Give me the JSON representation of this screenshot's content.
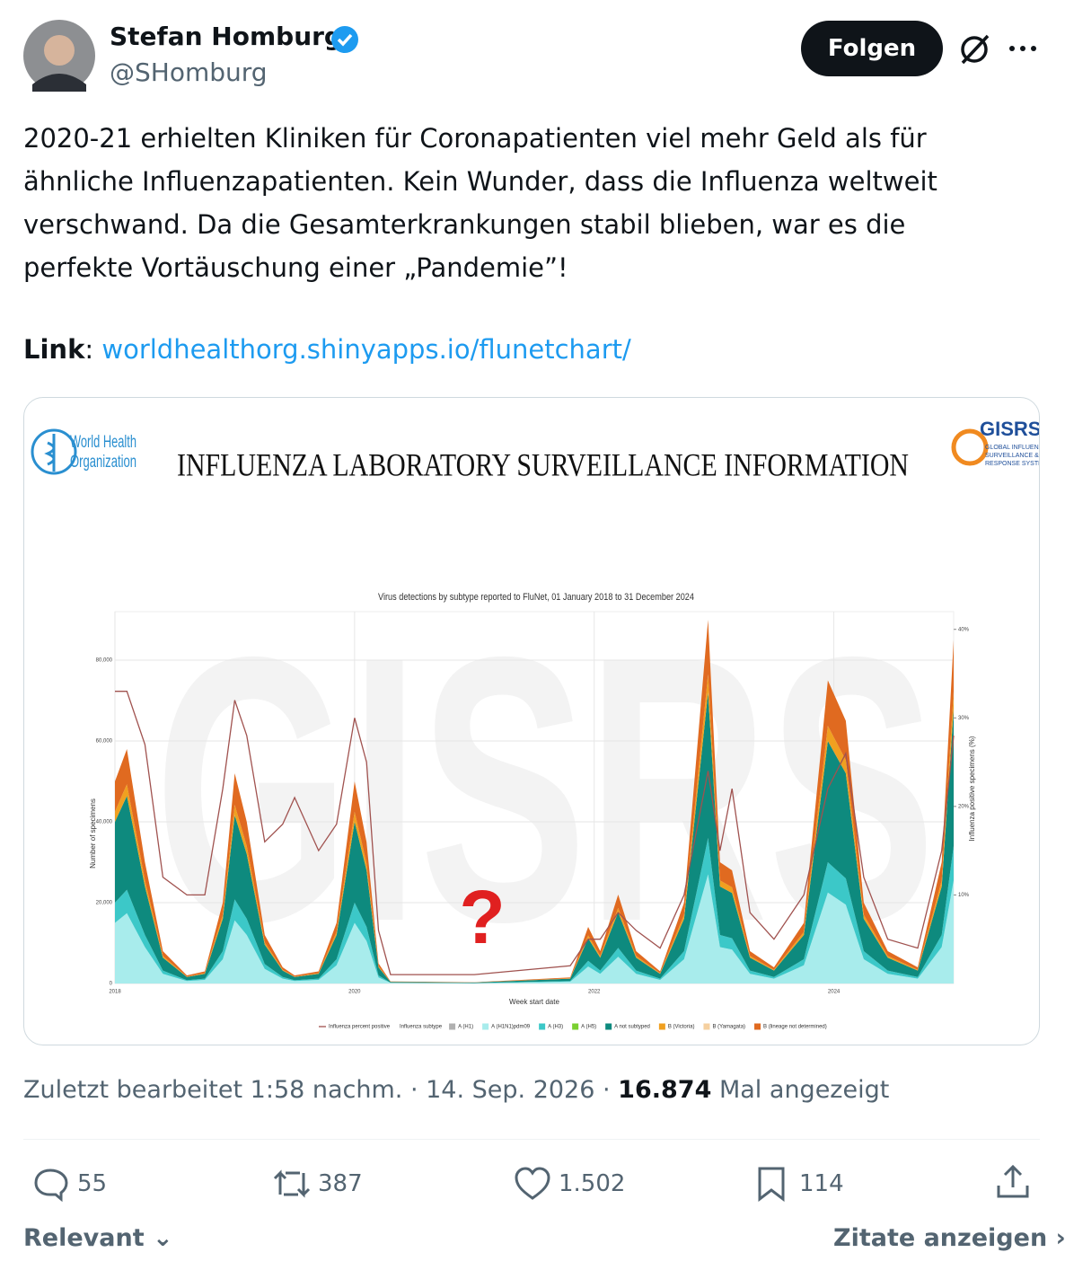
{
  "author": {
    "name": "Stefan Homburg",
    "handle": "@SHomburg"
  },
  "follow_button": "Folgen",
  "text_lines": [
    "2020-21 erhielten Kliniken für Coronapatienten viel mehr Geld als für",
    "ähnliche Influenzapatienten. Kein Wunder, dass die Influenza weltweit",
    "verschwand. Da die Gesamterkrankungen stabil blieben, war es die",
    "perfekte Vortäuschung einer „Pandemie”!"
  ],
  "link": {
    "label": "Link",
    "url": "worldhealthorg.shinyapps.io/flunetchart/"
  },
  "meta": {
    "edited": "Zuletzt bearbeitet 1:58 nachm. · 14. Sep. 2026 ·",
    "views": "16.874",
    "views_label": "Mal angezeigt"
  },
  "actions": {
    "replies": "55",
    "reposts": "387",
    "likes": "1.502",
    "bookmarks": "114"
  },
  "footer": {
    "sort": "Relevant",
    "quotes": "Zitate anzeigen"
  },
  "chart_data": {
    "type": "stacked_area",
    "banner": "INFLUENZA LABORATORY SURVEILLANCE INFORMATION",
    "who_logo": [
      "World Health",
      "Organization"
    ],
    "gisrs_logo": "GISRS",
    "gisrs_sub": [
      "GLOBAL INFLUENZA",
      "SURVEILLANCE &",
      "RESPONSE SYSTEM"
    ],
    "watermark": "GISRS",
    "title": "Virus detections by subtype reported to FluNet, 01 January 2018 to 31 December 2024",
    "xlabel": "Week start date",
    "ylabel": "Number of specimens",
    "y2label": "Influenza positive specimens (%)",
    "annotation": "?",
    "legend_title": "Influenza subtype",
    "xlim": [
      2018,
      2025
    ],
    "xticks": [
      2018,
      2020,
      2022,
      2024
    ],
    "ylim": [
      0,
      92000
    ],
    "yticks": [
      0,
      {
        "value": 20000,
        "label": "20,000"
      },
      {
        "value": 40000,
        "label": "40,000"
      },
      {
        "value": 60000,
        "label": "60,000"
      },
      {
        "value": 80000,
        "label": "80,000"
      }
    ],
    "y2lim": [
      0,
      42
    ],
    "y2ticks": [
      {
        "value": 10,
        "label": "10%"
      },
      {
        "value": 20,
        "label": "20%"
      },
      {
        "value": 30,
        "label": "30%"
      },
      {
        "value": 40,
        "label": "40%"
      }
    ],
    "grid": true,
    "x": [
      2018.0,
      2018.1,
      2018.25,
      2018.4,
      2018.6,
      2018.75,
      2018.9,
      2019.0,
      2019.1,
      2019.25,
      2019.4,
      2019.5,
      2019.7,
      2019.85,
      2020.0,
      2020.1,
      2020.2,
      2020.3,
      2021.0,
      2021.8,
      2021.95,
      2022.05,
      2022.2,
      2022.35,
      2022.55,
      2022.75,
      2022.95,
      2023.05,
      2023.15,
      2023.3,
      2023.5,
      2023.75,
      2023.95,
      2024.1,
      2024.25,
      2024.45,
      2024.7,
      2024.9,
      2025.0
    ],
    "line": {
      "name": "Influenza percent positive",
      "color": "#a0524f",
      "axis": "y2",
      "values": [
        33,
        33,
        27,
        12,
        10,
        10,
        22,
        32,
        28,
        16,
        18,
        21,
        15,
        18,
        30,
        25,
        6,
        1,
        1,
        2,
        5,
        5,
        8,
        6,
        4,
        10,
        24,
        15,
        22,
        8,
        5,
        10,
        22,
        26,
        12,
        5,
        4,
        15,
        28
      ]
    },
    "series": [
      {
        "name": "A (H1)",
        "color": "#b0b0b0",
        "values": [
          0,
          0,
          0,
          0,
          0,
          0,
          0,
          0,
          0,
          0,
          0,
          0,
          0,
          0,
          0,
          0,
          0,
          0,
          0,
          0,
          0,
          0,
          0,
          0,
          0,
          0,
          0,
          0,
          0,
          0,
          0,
          0,
          0,
          0,
          0,
          0,
          0,
          0,
          0
        ]
      },
      {
        "name": "A (H1N1)pdm09",
        "color": "#a8ecec",
        "values": [
          15000,
          17400,
          9000,
          2400,
          600,
          900,
          6000,
          15600,
          12000,
          3600,
          1200,
          600,
          900,
          4500,
          15000,
          10500,
          1500,
          150,
          90,
          450,
          4200,
          2400,
          6600,
          2400,
          900,
          6000,
          27000,
          9000,
          8400,
          2400,
          1200,
          4500,
          22500,
          19500,
          6000,
          2400,
          1200,
          9000,
          25500
        ]
      },
      {
        "name": "A (H3)",
        "color": "#3cc8c8",
        "values": [
          5000,
          5800,
          3000,
          800,
          200,
          300,
          2000,
          5200,
          4000,
          1200,
          400,
          200,
          300,
          1500,
          5000,
          3500,
          500,
          50,
          30,
          150,
          1400,
          800,
          2200,
          800,
          300,
          2000,
          9000,
          3000,
          2800,
          800,
          400,
          1500,
          7500,
          6500,
          2000,
          800,
          400,
          3000,
          8500
        ]
      },
      {
        "name": "A (H5)",
        "color": "#7ad030",
        "values": [
          0,
          0,
          0,
          0,
          0,
          0,
          0,
          0,
          0,
          0,
          0,
          0,
          0,
          0,
          0,
          0,
          0,
          0,
          0,
          0,
          0,
          0,
          0,
          0,
          0,
          0,
          0,
          0,
          0,
          0,
          0,
          0,
          0,
          0,
          0,
          0,
          0,
          0,
          0
        ]
      },
      {
        "name": "A not subtyped",
        "color": "#0e8a7e",
        "values": [
          20000,
          23200,
          12000,
          3200,
          800,
          1200,
          8000,
          20800,
          16000,
          4800,
          1600,
          800,
          1200,
          6000,
          20000,
          14000,
          2000,
          200,
          120,
          600,
          5600,
          3200,
          8800,
          3200,
          1200,
          8000,
          36000,
          12000,
          11200,
          3200,
          1600,
          6000,
          30000,
          26000,
          8000,
          3200,
          1600,
          12000,
          34000
        ]
      },
      {
        "name": "B (Victoria)",
        "color": "#f0a020",
        "values": [
          2500,
          2900,
          1500,
          400,
          100,
          150,
          1000,
          2600,
          2000,
          600,
          200,
          100,
          150,
          750,
          2500,
          1750,
          250,
          25,
          15,
          75,
          700,
          400,
          1100,
          400,
          150,
          1000,
          4500,
          1500,
          1400,
          400,
          200,
          750,
          3750,
          3250,
          1000,
          400,
          200,
          1500,
          4250
        ]
      },
      {
        "name": "B (Yamagata)",
        "color": "#f5d0a0",
        "values": [
          0,
          0,
          0,
          0,
          0,
          0,
          0,
          0,
          0,
          0,
          0,
          0,
          0,
          0,
          0,
          0,
          0,
          0,
          0,
          0,
          0,
          0,
          0,
          0,
          0,
          0,
          0,
          0,
          0,
          0,
          0,
          0,
          0,
          0,
          0,
          0,
          0,
          0,
          0
        ]
      },
      {
        "name": "B (lineage not determined)",
        "color": "#e06a20",
        "values": [
          7500,
          8700,
          4500,
          1200,
          300,
          450,
          3000,
          7800,
          6000,
          1800,
          600,
          300,
          450,
          2250,
          7500,
          5250,
          750,
          75,
          45,
          225,
          2100,
          1200,
          3300,
          1200,
          450,
          3000,
          13500,
          4500,
          4200,
          1200,
          600,
          2250,
          11250,
          9750,
          3000,
          1200,
          600,
          4500,
          12750
        ]
      }
    ]
  }
}
